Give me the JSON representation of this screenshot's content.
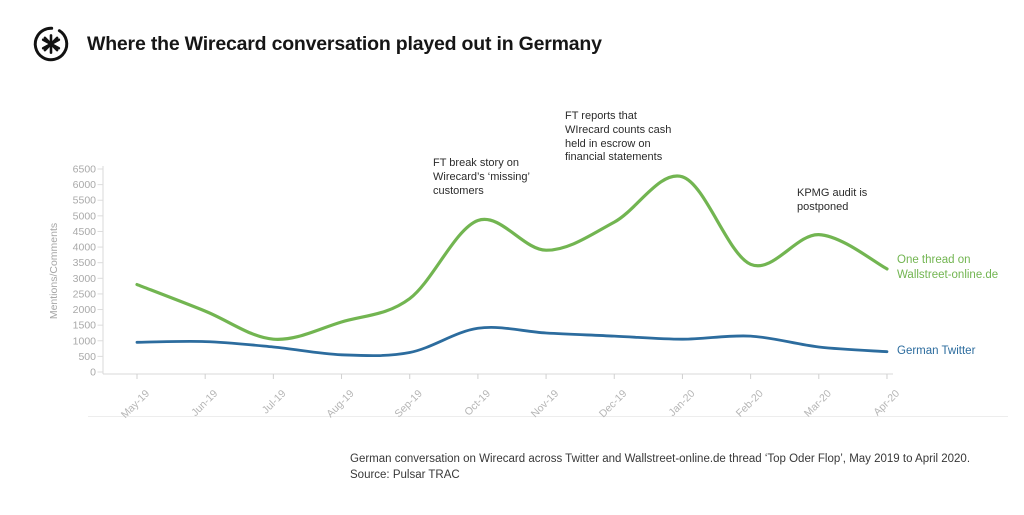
{
  "header": {
    "logo_icon": "pulsar-asterisk-logo",
    "title": "Where the Wirecard conversation played out in Germany"
  },
  "chart_data": {
    "type": "line",
    "title": "Where the Wirecard conversation played out in Germany",
    "xlabel": "",
    "ylabel": "Mentions/Comments",
    "ylim": [
      0,
      6500
    ],
    "ytick_step": 500,
    "grid": false,
    "smooth": true,
    "legend_position": "line-end-labels",
    "categories": [
      "May-19",
      "Jun-19",
      "Jul-19",
      "Aug-19",
      "Sep-19",
      "Oct-19",
      "Nov-19",
      "Dec-19",
      "Jan-20",
      "Feb-20",
      "Mar-20",
      "Apr-20"
    ],
    "series": [
      {
        "name": "One thread on Wallstreet-online.de",
        "end_label": "One thread on\nWallstreet-online.de",
        "color": "#72b551",
        "values": [
          2800,
          1950,
          1050,
          1600,
          2350,
          4850,
          3900,
          4800,
          6250,
          3450,
          4400,
          3300
        ]
      },
      {
        "name": "German Twitter",
        "end_label": "German Twitter",
        "color": "#2c6c9e",
        "values": [
          950,
          975,
          800,
          550,
          625,
          1400,
          1250,
          1150,
          1050,
          1150,
          800,
          650
        ]
      }
    ],
    "annotations": [
      {
        "text": "FT break story on\nWirecard’s ‘missing’\ncustomers"
      },
      {
        "text": "FT reports that\nWIrecard counts cash\nheld in escrow on\nfinancial statements"
      },
      {
        "text": "KPMG audit is\npostponed"
      }
    ]
  },
  "caption": {
    "line1": "German conversation on Wirecard across Twitter and Wallstreet-online.de thread ‘Top Oder Flop’, May 2019 to April 2020.",
    "line2": "Source: Pulsar TRAC"
  }
}
